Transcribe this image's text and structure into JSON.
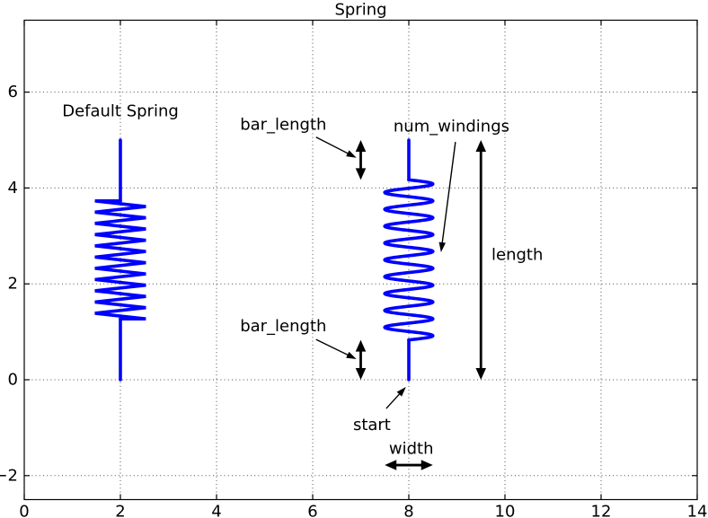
{
  "figure": {
    "title": "Spring"
  },
  "colors": {
    "spring": "#0000ff",
    "axis": "#000000",
    "grid": "#4a4a4a",
    "text": "#000000",
    "background": "#ffffff"
  },
  "chart_data": {
    "type": "line",
    "title": "Spring",
    "axes": {
      "xlim": [
        0,
        14
      ],
      "ylim": [
        -2.5,
        7.5
      ],
      "xticks": [
        0,
        2,
        4,
        6,
        8,
        10,
        12,
        14
      ],
      "xtick_labels": [
        "0",
        "2",
        "4",
        "6",
        "8",
        "10",
        "12",
        "14"
      ],
      "yticks": [
        -2,
        0,
        2,
        4,
        6
      ],
      "ytick_labels": [
        "−2",
        "0",
        "2",
        "4",
        "6"
      ],
      "grid": "dotted",
      "aspect": "equal"
    },
    "springs": [
      {
        "name": "default-spring",
        "style": "zigzag-teeth",
        "x": 2,
        "y_start": 0,
        "length": 5,
        "bar_length": 1.27,
        "half_width": 0.53,
        "windings_from": 1.27,
        "windings_to": 3.73,
        "num_traverses": 21
      },
      {
        "name": "custom-spring",
        "style": "smooth-sine",
        "x": 8,
        "y_start": 0,
        "length": 5,
        "bar_length": 0.83,
        "half_width": 0.5,
        "windings_from": 0.83,
        "windings_to": 4.17,
        "num_windings": 9.5
      }
    ],
    "dimension_arrows": [
      {
        "name": "bar-length-top-dim",
        "x1": 7.0,
        "y1": 4.17,
        "x2": 7.0,
        "y2": 5.0
      },
      {
        "name": "bar-length-bottom-dim",
        "x1": 7.0,
        "y1": 0.0,
        "x2": 7.0,
        "y2": 0.83
      },
      {
        "name": "length-dim",
        "x1": 9.5,
        "y1": 0.0,
        "x2": 9.5,
        "y2": 5.0
      },
      {
        "name": "width-dim",
        "x1": 7.5,
        "y1": -1.78,
        "x2": 8.5,
        "y2": -1.78
      }
    ],
    "leader_arrows": [
      {
        "name": "bar-length-top-leader",
        "x1": 6.07,
        "y1": 5.06,
        "x2": 6.91,
        "y2": 4.63
      },
      {
        "name": "bar-length-bottom-leader",
        "x1": 6.07,
        "y1": 0.84,
        "x2": 6.91,
        "y2": 0.43
      },
      {
        "name": "num-windings-leader",
        "x1": 8.97,
        "y1": 4.96,
        "x2": 8.67,
        "y2": 2.66
      },
      {
        "name": "start-leader",
        "x1": 7.53,
        "y1": -0.6,
        "x2": 7.94,
        "y2": -0.15
      }
    ],
    "labels": [
      {
        "name": "default-spring-label",
        "text": "Default Spring",
        "x": 2.0,
        "y": 5.6,
        "anchor": "middle"
      },
      {
        "name": "bar-length-top-label",
        "text": "bar_length",
        "x": 4.49,
        "y": 5.32,
        "anchor": "start"
      },
      {
        "name": "bar-length-bottom-label",
        "text": "bar_length",
        "x": 4.49,
        "y": 1.11,
        "anchor": "start"
      },
      {
        "name": "num-windings-label",
        "text": "num_windings",
        "x": 7.68,
        "y": 5.28,
        "anchor": "start"
      },
      {
        "name": "length-label",
        "text": "length",
        "x": 9.72,
        "y": 2.6,
        "anchor": "start"
      },
      {
        "name": "start-label",
        "text": "start",
        "x": 6.84,
        "y": -0.95,
        "anchor": "start"
      },
      {
        "name": "width-label",
        "text": "width",
        "x": 8.05,
        "y": -1.44,
        "anchor": "middle"
      }
    ]
  }
}
